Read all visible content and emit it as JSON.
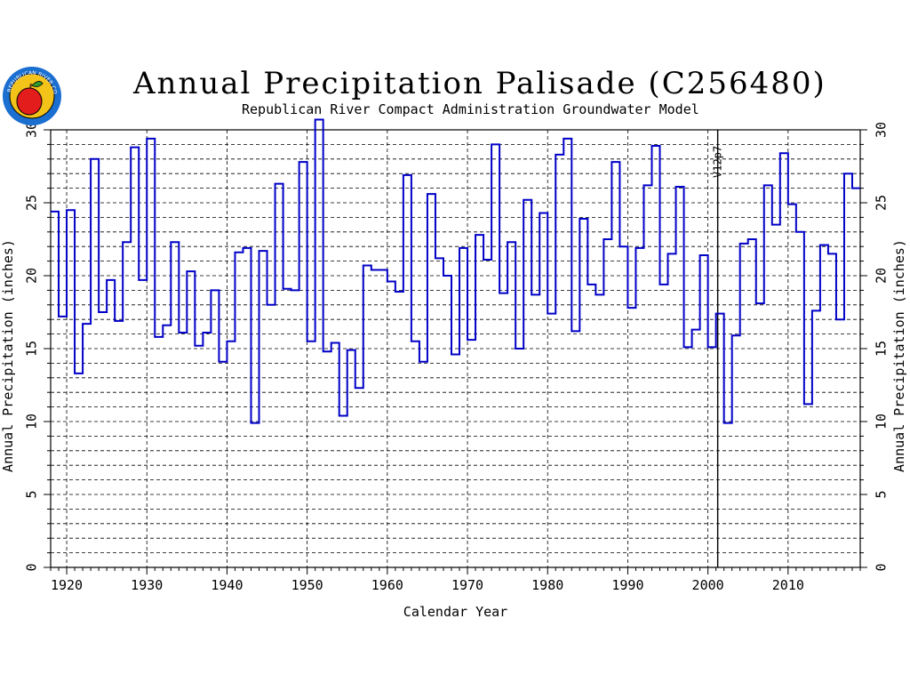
{
  "header": {
    "title": "Annual Precipitation Palisade (C256480)",
    "subtitle": "Republican River Compact Administration Groundwater Model",
    "logo_text": "REPUBLICAN RIVER COMPACT"
  },
  "colors": {
    "series": "#0000c8",
    "axis": "#000000",
    "grid": "#000000",
    "logo_ring": "#1b6fd0",
    "logo_fill": "#f3c31a",
    "apple": "#e31c1c",
    "leaf": "#2e9a2e"
  },
  "chart_data": {
    "type": "line",
    "step": true,
    "title": "Annual Precipitation Palisade (C256480)",
    "subtitle": "Republican River Compact Administration Groundwater Model",
    "xlabel": "Calendar Year",
    "ylabel": "Annual Precipitation (inches)",
    "ylabel_right": "Annual Precipitation (inches)",
    "xlim": [
      1918,
      2019
    ],
    "ylim": [
      0,
      30
    ],
    "x_ticks": [
      1920,
      1930,
      1940,
      1950,
      1960,
      1970,
      1980,
      1990,
      2000,
      2010
    ],
    "y_ticks": [
      0,
      5,
      10,
      15,
      20,
      25,
      30
    ],
    "grid": true,
    "marker": {
      "x": 2001,
      "label": "V12p7"
    },
    "series": [
      {
        "x": [
          1918,
          1919,
          1920,
          1921,
          1922,
          1923,
          1924,
          1925,
          1926,
          1927,
          1928,
          1929,
          1930,
          1931,
          1932,
          1933,
          1934,
          1935,
          1936,
          1937,
          1938,
          1939,
          1940,
          1941,
          1942,
          1943,
          1944,
          1945,
          1946,
          1947,
          1948,
          1949,
          1950,
          1951,
          1952,
          1953,
          1954,
          1955,
          1956,
          1957,
          1958,
          1959,
          1960,
          1961,
          1962,
          1963,
          1964,
          1965,
          1966,
          1967,
          1968,
          1969,
          1970,
          1971,
          1972,
          1973,
          1974,
          1975,
          1976,
          1977,
          1978,
          1979,
          1980,
          1981,
          1982,
          1983,
          1984,
          1985,
          1986,
          1987,
          1988,
          1989,
          1990,
          1991,
          1992,
          1993,
          1994,
          1995,
          1996,
          1997,
          1998,
          1999,
          2000,
          2001,
          2002,
          2003,
          2004,
          2005,
          2006,
          2007,
          2008,
          2009,
          2010,
          2011,
          2012,
          2013,
          2014,
          2015,
          2016,
          2017,
          2018
        ],
        "values": [
          24.4,
          17.2,
          24.5,
          13.3,
          16.7,
          28.0,
          17.5,
          19.7,
          16.9,
          22.3,
          28.8,
          19.7,
          29.4,
          15.8,
          16.6,
          22.3,
          16.1,
          20.3,
          15.2,
          16.1,
          19.0,
          14.1,
          15.5,
          21.6,
          21.9,
          9.9,
          21.7,
          18.0,
          26.3,
          19.1,
          19.0,
          27.8,
          15.5,
          30.7,
          14.8,
          15.4,
          10.4,
          14.9,
          12.3,
          20.7,
          20.4,
          20.4,
          19.6,
          18.9,
          26.9,
          15.5,
          14.1,
          25.6,
          21.2,
          20.0,
          14.6,
          21.9,
          15.6,
          22.8,
          21.1,
          29.0,
          18.8,
          22.3,
          15.0,
          25.2,
          18.7,
          24.3,
          17.4,
          28.3,
          29.4,
          16.2,
          23.9,
          19.4,
          18.7,
          22.5,
          27.8,
          22.0,
          17.8,
          21.9,
          26.2,
          28.9,
          19.4,
          21.5,
          26.1,
          15.1,
          16.3,
          21.4,
          15.1,
          17.4,
          9.9,
          15.9,
          22.2,
          22.5,
          18.1,
          26.2,
          23.5,
          28.4,
          24.9,
          23.0,
          11.2,
          17.6,
          22.1,
          21.5,
          17.0,
          27.0,
          26.0
        ]
      }
    ]
  }
}
